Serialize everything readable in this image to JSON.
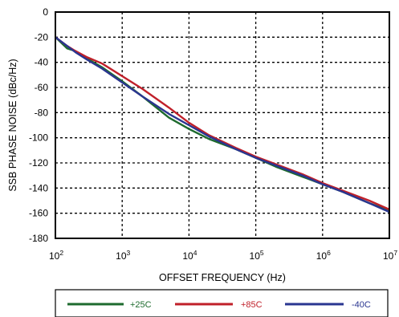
{
  "chart_data": {
    "type": "line",
    "title": "",
    "xlabel": "OFFSET FREQUENCY (Hz)",
    "ylabel": "SSB PHASE NOISE (dBc/Hz)",
    "x_scale": "log",
    "xlim": [
      100,
      10000000
    ],
    "ylim": [
      -180,
      0
    ],
    "grid": true,
    "grid_style": "dotted",
    "legend_position": "bottom",
    "x_ticks": [
      {
        "base": "10",
        "exp": "2"
      },
      {
        "base": "10",
        "exp": "3"
      },
      {
        "base": "10",
        "exp": "4"
      },
      {
        "base": "10",
        "exp": "5"
      },
      {
        "base": "10",
        "exp": "6"
      },
      {
        "base": "10",
        "exp": "7"
      }
    ],
    "y_ticks": [
      "0",
      "-20",
      "-40",
      "-60",
      "-80",
      "-100",
      "-120",
      "-140",
      "-160",
      "-180"
    ],
    "series": [
      {
        "name": "+25C",
        "color": "#1e6b2e",
        "points": [
          [
            100,
            -20
          ],
          [
            150,
            -29
          ],
          [
            200,
            -31
          ],
          [
            300,
            -37
          ],
          [
            500,
            -44
          ],
          [
            1000,
            -55
          ],
          [
            2000,
            -67
          ],
          [
            5000,
            -84
          ],
          [
            10000,
            -93
          ],
          [
            20000,
            -101
          ],
          [
            50000,
            -109
          ],
          [
            100000,
            -116
          ],
          [
            200000,
            -123
          ],
          [
            500000,
            -131
          ],
          [
            1000000,
            -137
          ],
          [
            2000000,
            -143
          ],
          [
            5000000,
            -152
          ],
          [
            10000000,
            -158
          ]
        ]
      },
      {
        "name": "+85C",
        "color": "#c0202a",
        "points": [
          [
            100,
            -20
          ],
          [
            150,
            -27
          ],
          [
            200,
            -31
          ],
          [
            300,
            -36
          ],
          [
            500,
            -41
          ],
          [
            1000,
            -51
          ],
          [
            2000,
            -61
          ],
          [
            5000,
            -76
          ],
          [
            10000,
            -88
          ],
          [
            20000,
            -98
          ],
          [
            50000,
            -108
          ],
          [
            100000,
            -115
          ],
          [
            200000,
            -121
          ],
          [
            500000,
            -129
          ],
          [
            1000000,
            -136
          ],
          [
            2000000,
            -142
          ],
          [
            5000000,
            -150
          ],
          [
            10000000,
            -157
          ]
        ]
      },
      {
        "name": "-40C",
        "color": "#2a3590",
        "points": [
          [
            100,
            -20
          ],
          [
            150,
            -27
          ],
          [
            200,
            -32
          ],
          [
            300,
            -38
          ],
          [
            500,
            -45
          ],
          [
            1000,
            -56
          ],
          [
            2000,
            -67
          ],
          [
            5000,
            -81
          ],
          [
            10000,
            -90
          ],
          [
            20000,
            -99
          ],
          [
            50000,
            -109
          ],
          [
            100000,
            -116
          ],
          [
            200000,
            -122
          ],
          [
            500000,
            -130
          ],
          [
            1000000,
            -137
          ],
          [
            2000000,
            -143
          ],
          [
            5000000,
            -152
          ],
          [
            10000000,
            -159
          ]
        ]
      }
    ]
  }
}
